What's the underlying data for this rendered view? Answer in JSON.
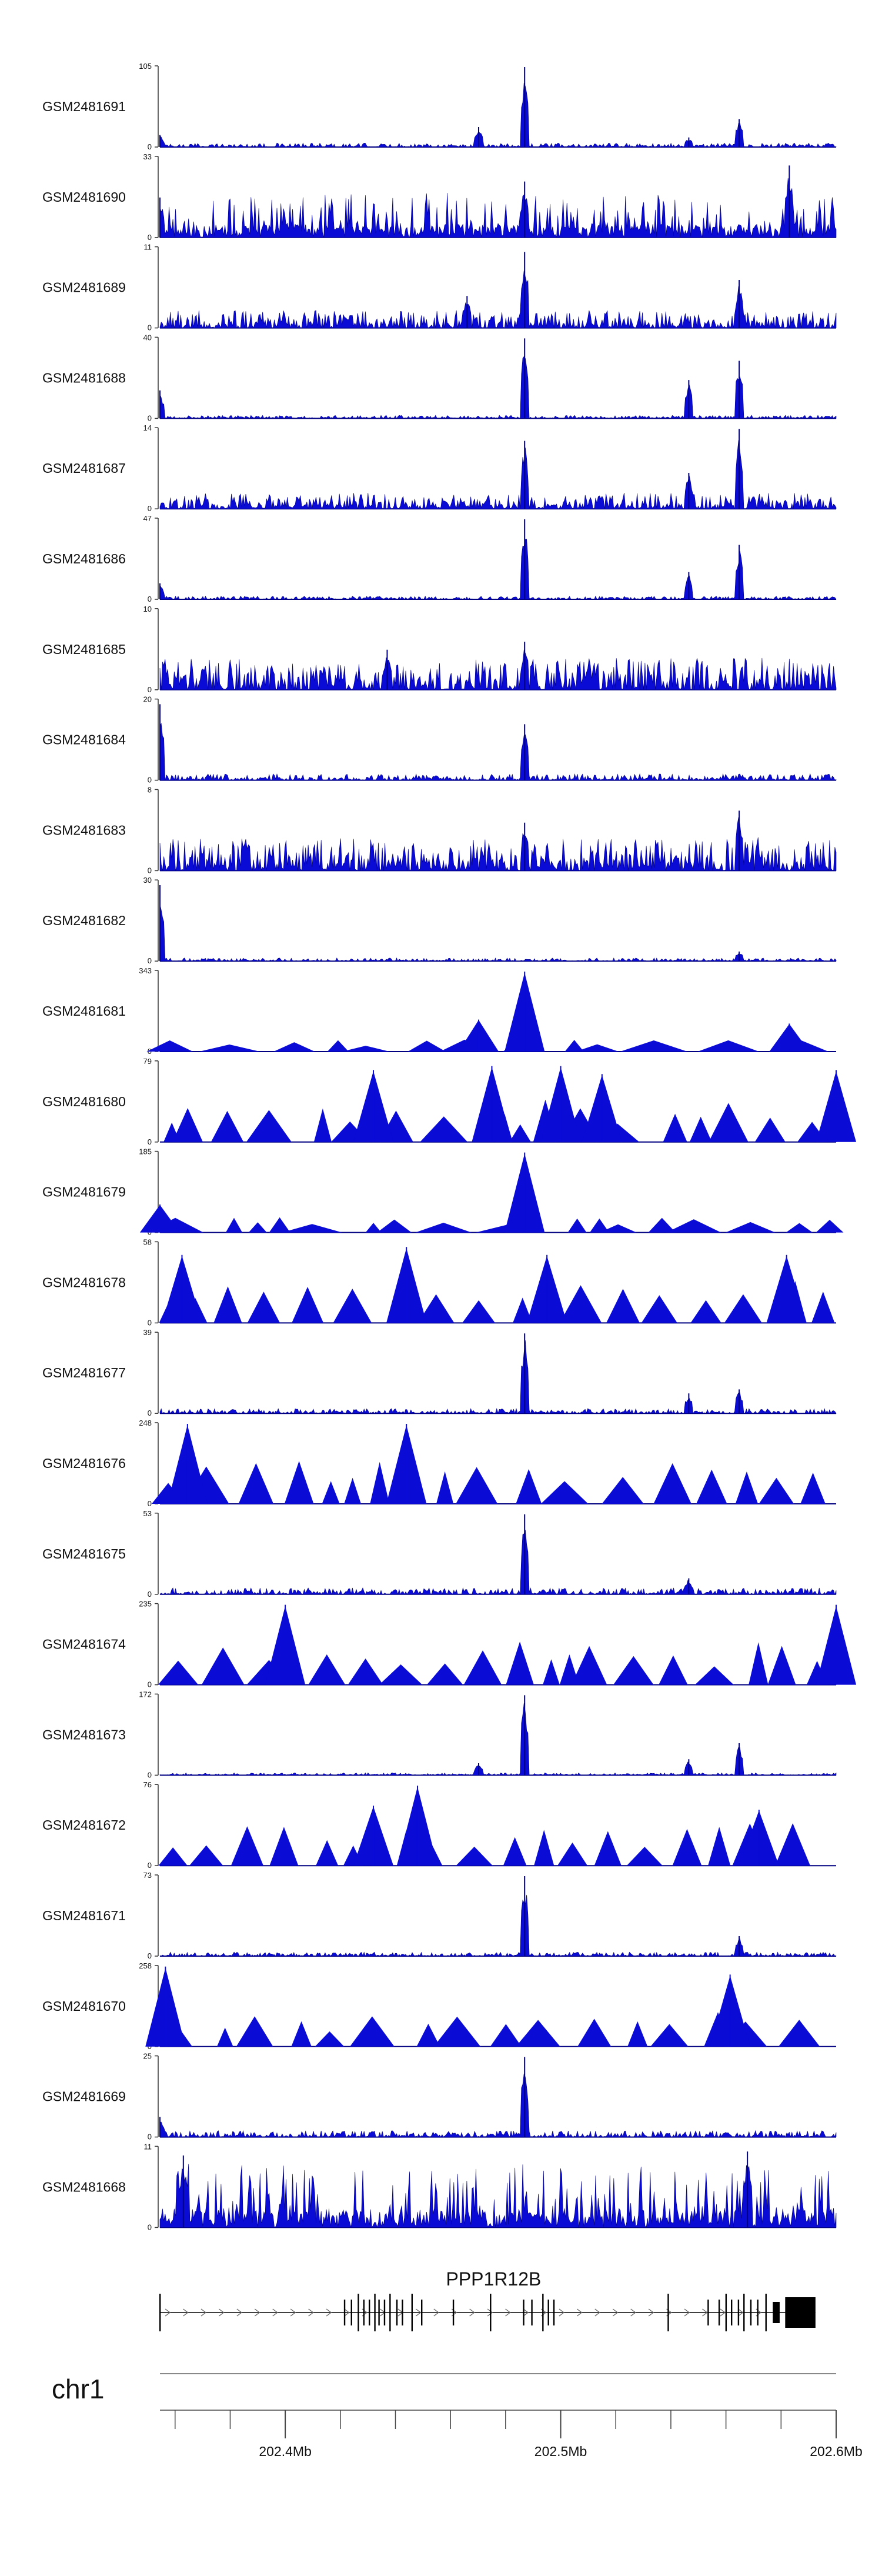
{
  "chart_data": {
    "type": "area",
    "tracks": [
      {
        "name": "GSM2481691",
        "ymax": 105,
        "ymin": 0,
        "style": "spiky",
        "peaks": [
          [
            202.4869,
            1.0
          ],
          [
            202.5648,
            0.35
          ],
          [
            202.5465,
            0.12
          ],
          [
            202.4702,
            0.25
          ],
          [
            202.3545,
            0.15
          ]
        ],
        "noise": 0.05
      },
      {
        "name": "GSM2481690",
        "ymax": 33,
        "ymin": 0,
        "style": "dense",
        "peaks": [
          [
            202.583,
            0.9
          ],
          [
            202.4869,
            0.7
          ],
          [
            202.3545,
            0.5
          ]
        ],
        "noise": 0.35
      },
      {
        "name": "GSM2481689",
        "ymax": 11,
        "ymin": 0,
        "style": "spiky",
        "peaks": [
          [
            202.4869,
            0.95
          ],
          [
            202.5648,
            0.6
          ],
          [
            202.466,
            0.4
          ]
        ],
        "noise": 0.22
      },
      {
        "name": "GSM2481688",
        "ymax": 40,
        "ymin": 0,
        "style": "spiky",
        "peaks": [
          [
            202.4869,
            1.0
          ],
          [
            202.5648,
            0.72
          ],
          [
            202.5465,
            0.48
          ],
          [
            202.3545,
            0.35
          ]
        ],
        "noise": 0.04
      },
      {
        "name": "GSM2481687",
        "ymax": 14,
        "ymin": 0,
        "style": "spiky",
        "peaks": [
          [
            202.4869,
            0.85
          ],
          [
            202.5648,
            1.0
          ],
          [
            202.5465,
            0.45
          ]
        ],
        "noise": 0.2
      },
      {
        "name": "GSM2481686",
        "ymax": 47,
        "ymin": 0,
        "style": "spiky",
        "peaks": [
          [
            202.4869,
            1.0
          ],
          [
            202.5648,
            0.68
          ],
          [
            202.5465,
            0.34
          ],
          [
            202.3545,
            0.2
          ]
        ],
        "noise": 0.04
      },
      {
        "name": "GSM2481685",
        "ymax": 10,
        "ymin": 0,
        "style": "spiky",
        "peaks": [
          [
            202.4869,
            0.6
          ],
          [
            202.437,
            0.5
          ]
        ],
        "noise": 0.4
      },
      {
        "name": "GSM2481684",
        "ymax": 20,
        "ymin": 0,
        "style": "spiky",
        "peaks": [
          [
            202.3545,
            0.95
          ],
          [
            202.4869,
            0.7
          ]
        ],
        "noise": 0.08
      },
      {
        "name": "GSM2481683",
        "ymax": 8,
        "ymin": 0,
        "style": "spiky",
        "peaks": [
          [
            202.5648,
            0.75
          ],
          [
            202.4869,
            0.6
          ]
        ],
        "noise": 0.42
      },
      {
        "name": "GSM2481682",
        "ymax": 30,
        "ymin": 0,
        "style": "spiky",
        "peaks": [
          [
            202.3545,
            0.95
          ],
          [
            202.5648,
            0.12
          ]
        ],
        "noise": 0.04
      },
      {
        "name": "GSM2481681",
        "ymax": 343,
        "ymin": 0,
        "style": "triangles",
        "peaks": [
          [
            202.4869,
            1.0
          ],
          [
            202.4702,
            0.4
          ],
          [
            202.583,
            0.35
          ]
        ],
        "noise": 0.18
      },
      {
        "name": "GSM2481680",
        "ymax": 79,
        "ymin": 0,
        "style": "triangles",
        "peaks": [
          [
            202.475,
            0.95
          ],
          [
            202.5,
            0.95
          ],
          [
            202.432,
            0.9
          ],
          [
            202.515,
            0.85
          ],
          [
            202.6,
            0.9
          ]
        ],
        "noise": 0.55
      },
      {
        "name": "GSM2481679",
        "ymax": 185,
        "ymin": 0,
        "style": "triangles",
        "peaks": [
          [
            202.4869,
            1.0
          ],
          [
            202.3545,
            0.35
          ]
        ],
        "noise": 0.2
      },
      {
        "name": "GSM2481678",
        "ymax": 58,
        "ymin": 0,
        "style": "triangles",
        "peaks": [
          [
            202.444,
            0.95
          ],
          [
            202.3625,
            0.85
          ],
          [
            202.495,
            0.85
          ],
          [
            202.582,
            0.85
          ]
        ],
        "noise": 0.55
      },
      {
        "name": "GSM2481677",
        "ymax": 39,
        "ymin": 0,
        "style": "spiky",
        "peaks": [
          [
            202.4869,
            1.0
          ],
          [
            202.5465,
            0.25
          ],
          [
            202.5648,
            0.3
          ]
        ],
        "noise": 0.06
      },
      {
        "name": "GSM2481676",
        "ymax": 248,
        "ymin": 0,
        "style": "triangles",
        "peaks": [
          [
            202.444,
            1.0
          ],
          [
            202.3645,
            1.0
          ]
        ],
        "noise": 0.55
      },
      {
        "name": "GSM2481675",
        "ymax": 53,
        "ymin": 0,
        "style": "spiky",
        "peaks": [
          [
            202.4869,
            1.0
          ],
          [
            202.5465,
            0.2
          ]
        ],
        "noise": 0.08
      },
      {
        "name": "GSM2481674",
        "ymax": 235,
        "ymin": 0,
        "style": "triangles",
        "peaks": [
          [
            202.4,
            1.0
          ],
          [
            202.6,
            1.0
          ]
        ],
        "noise": 0.55
      },
      {
        "name": "GSM2481673",
        "ymax": 172,
        "ymin": 0,
        "style": "spiky",
        "peaks": [
          [
            202.4869,
            1.0
          ],
          [
            202.5648,
            0.4
          ],
          [
            202.5465,
            0.2
          ],
          [
            202.4702,
            0.15
          ]
        ],
        "noise": 0.03
      },
      {
        "name": "GSM2481672",
        "ymax": 76,
        "ymin": 0,
        "style": "triangles",
        "peaks": [
          [
            202.448,
            1.0
          ],
          [
            202.432,
            0.75
          ],
          [
            202.572,
            0.7
          ]
        ],
        "noise": 0.55
      },
      {
        "name": "GSM2481671",
        "ymax": 73,
        "ymin": 0,
        "style": "spiky",
        "peaks": [
          [
            202.4869,
            1.0
          ],
          [
            202.5648,
            0.25
          ]
        ],
        "noise": 0.05
      },
      {
        "name": "GSM2481670",
        "ymax": 258,
        "ymin": 0,
        "style": "triangles",
        "peaks": [
          [
            202.3565,
            1.0
          ],
          [
            202.5615,
            0.9
          ]
        ],
        "noise": 0.45
      },
      {
        "name": "GSM2481669",
        "ymax": 25,
        "ymin": 0,
        "style": "spiky",
        "peaks": [
          [
            202.4869,
            1.0
          ],
          [
            202.3545,
            0.25
          ]
        ],
        "noise": 0.08
      },
      {
        "name": "GSM2481668",
        "ymax": 11,
        "ymin": 0,
        "style": "dense",
        "peaks": [
          [
            202.5678,
            0.95
          ],
          [
            202.363,
            0.9
          ]
        ],
        "noise": 0.5
      }
    ],
    "gene": {
      "name": "PPP1R12B",
      "start": 202.3545,
      "end": 202.5925,
      "strand": "+",
      "exons": [
        202.3545,
        202.4215,
        202.424,
        202.4265,
        202.4285,
        202.4305,
        202.4325,
        202.434,
        202.436,
        202.438,
        202.4405,
        202.4425,
        202.446,
        202.4495,
        202.461,
        202.4745,
        202.4865,
        202.4895,
        202.4935,
        202.4955,
        202.4975,
        202.539,
        202.5535,
        202.5575,
        202.56,
        202.562,
        202.5645,
        202.5665,
        202.569,
        202.5715,
        202.5745
      ],
      "utr_blocks": [
        [
          202.577,
          202.5795
        ],
        [
          202.5815,
          202.5925
        ]
      ]
    },
    "chromosome": "chr1",
    "x_axis": {
      "domain": [
        202.3545,
        202.6
      ],
      "ticks": [
        202.36,
        202.38,
        202.4,
        202.42,
        202.44,
        202.46,
        202.48,
        202.5,
        202.52,
        202.54,
        202.56,
        202.58,
        202.6
      ],
      "labels": [
        {
          "value": 202.4,
          "text": "202.4Mb"
        },
        {
          "value": 202.5,
          "text": "202.5Mb"
        },
        {
          "value": 202.6,
          "text": "202.6Mb"
        }
      ]
    },
    "colors": {
      "signal": "#0b0bd6",
      "signal_dark": "#000080",
      "axis": "#444444",
      "gene": "#000000"
    }
  }
}
